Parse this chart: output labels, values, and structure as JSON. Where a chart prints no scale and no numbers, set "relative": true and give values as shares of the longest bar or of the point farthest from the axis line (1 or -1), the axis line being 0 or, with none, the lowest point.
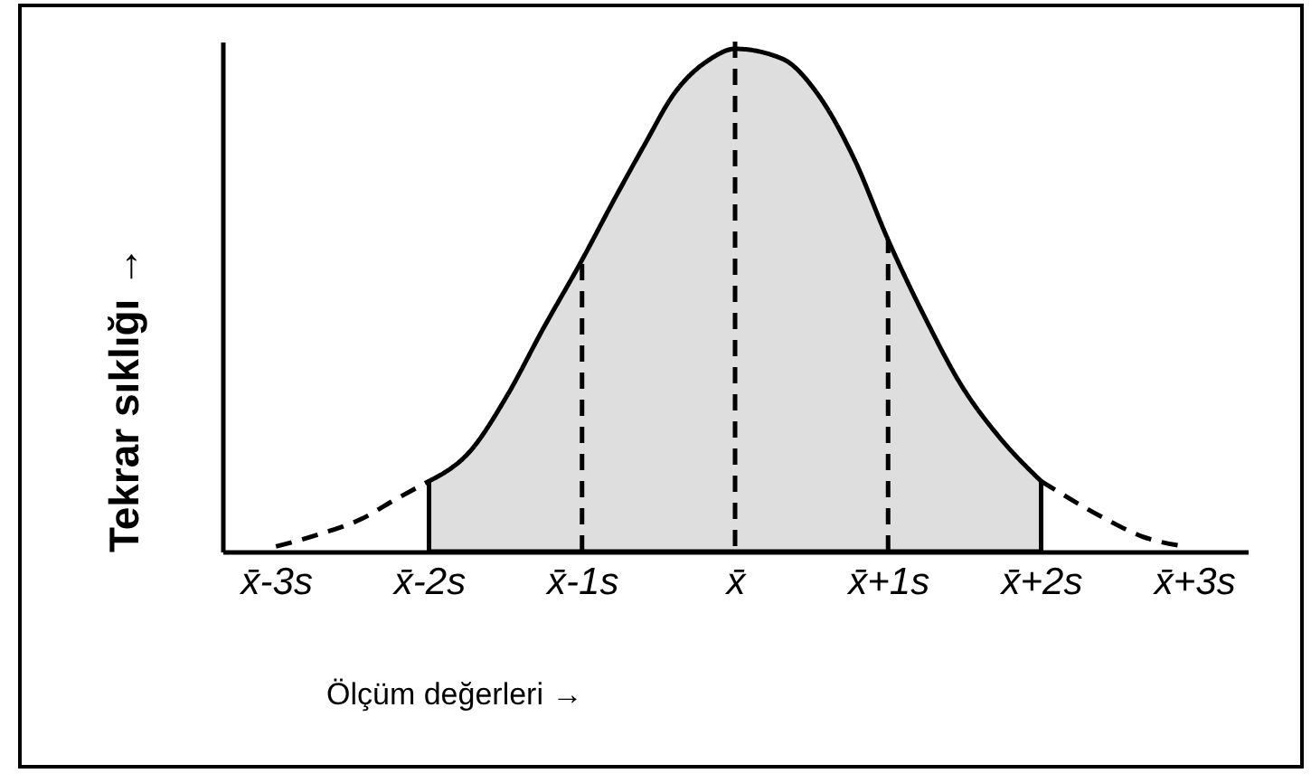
{
  "chart_data": {
    "type": "line",
    "relative": true,
    "xlabel": "Ölçüm değerleri →",
    "ylabel": "Tekrar sıklığı →",
    "grid": false,
    "xlim": [
      -3.35,
      3.35
    ],
    "xticks": [
      {
        "value": -3,
        "label": "x̄-3s"
      },
      {
        "value": -2,
        "label": "x̄-2s"
      },
      {
        "value": -1,
        "label": "x̄-1s"
      },
      {
        "value": 0,
        "label": "x̄"
      },
      {
        "value": 1,
        "label": "x̄+1s"
      },
      {
        "value": 2,
        "label": "x̄+2s"
      },
      {
        "value": 3,
        "label": "x̄+3s"
      }
    ],
    "ref_lines": [
      {
        "axis": "x",
        "value": 0,
        "line_style": "dashed",
        "color": "#000000"
      }
    ],
    "series": [
      {
        "line_style": "dashed",
        "color": "#000000",
        "x": [
          -3.0,
          -2.7,
          -2.44,
          -2.24,
          -2.0
        ],
        "values": [
          0.01,
          0.036,
          0.065,
          0.1,
          0.14
        ]
      },
      {
        "type": "area",
        "color": "#000000",
        "x": [
          -2.0,
          -1.73,
          -1.49,
          -1.26,
          -1.0,
          -0.79,
          -0.59,
          -0.4,
          -0.16,
          0,
          0.31,
          0.54,
          0.78,
          1.0,
          1.25,
          1.48,
          1.72,
          2.0
        ],
        "values": [
          0.14,
          0.2,
          0.31,
          0.44,
          0.58,
          0.7,
          0.81,
          0.91,
          0.98,
          1.0,
          0.98,
          0.91,
          0.78,
          0.62,
          0.46,
          0.33,
          0.23,
          0.14
        ]
      },
      {
        "line_style": "dashed",
        "color": "#000000",
        "x": [
          2.0,
          2.42,
          2.66,
          2.94
        ],
        "values": [
          0.14,
          0.065,
          0.03,
          0.01
        ]
      },
      {
        "line_style": "dashed",
        "color": "#000000",
        "x": [
          -1.0,
          -1.0
        ],
        "values": [
          0,
          0.58
        ]
      },
      {
        "line_style": "dashed",
        "color": "#000000",
        "x": [
          1.0,
          1.0
        ],
        "values": [
          0,
          0.62
        ]
      }
    ]
  }
}
